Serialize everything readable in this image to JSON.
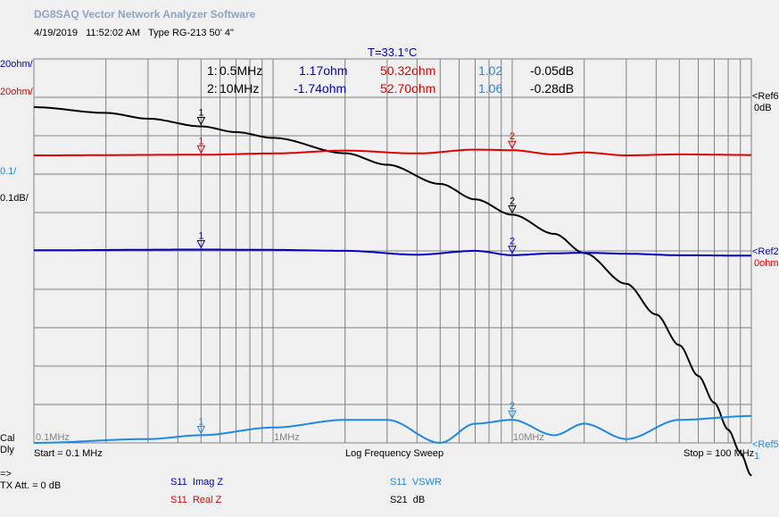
{
  "app_title": "DG8SAQ Vector Network Analyzer Software",
  "date": "4/19/2019",
  "time": "11:52:02 AM",
  "type_label": "Type RG-213 50' 4\"",
  "temperature": "T=33.1°C",
  "colors": {
    "black": "#000000",
    "red": "#e00000",
    "blue": "#0000c0",
    "lightblue": "#1e88e5",
    "grid": "#808080",
    "bg": "#f0f0f0"
  },
  "left_scales": {
    "imagz": "20ohm/",
    "realz": "20ohm/",
    "vswr": "0.1/",
    "db": "0.1dB/",
    "cal": "Cal",
    "dly": "Dly"
  },
  "right_refs": {
    "ref6": "<Ref6",
    "ref6_val": "0dB",
    "ref2": "<Ref2",
    "ref2_val": "0ohm",
    "ref5": "<Ref5",
    "ref5_val": "1"
  },
  "markers": [
    {
      "id": "1:",
      "freq": "0.5MHz",
      "imagz": "1.17ohm",
      "realz": "50.32ohm",
      "vswr": "1.02",
      "db": "-0.05dB"
    },
    {
      "id": "2:",
      "freq": "10MHz",
      "imagz": "-1.74ohm",
      "realz": "52.70ohm",
      "vswr": "1.06",
      "db": "-0.28dB"
    }
  ],
  "freq_labels": {
    "f01": "0.1MHz",
    "f1": "1MHz",
    "f10": "10MHz"
  },
  "start": "Start = 0.1 MHz",
  "sweep": "Log Frequency Sweep",
  "stop": "Stop = 100 MHz",
  "arrow": "=>",
  "tx_att": "TX Att. = 0 dB",
  "legend": [
    {
      "param": "S11",
      "name": "Imag Z"
    },
    {
      "param": "S11",
      "name": "Real Z"
    },
    {
      "param": "S11",
      "name": "VSWR"
    },
    {
      "param": "S21",
      "name": "dB"
    }
  ],
  "chart_data": {
    "type": "line",
    "x_scale": "log",
    "xlim": [
      0.1,
      100
    ],
    "x_unit": "MHz",
    "series": [
      {
        "name": "S21 dB",
        "color": "#000000",
        "x": [
          0.1,
          0.2,
          0.3,
          0.5,
          0.7,
          1,
          2,
          3,
          5,
          7,
          10,
          15,
          20,
          30,
          40,
          50,
          60,
          70,
          80,
          90,
          100
        ],
        "y": [
          0.0,
          -0.015,
          -0.03,
          -0.05,
          -0.065,
          -0.08,
          -0.12,
          -0.15,
          -0.2,
          -0.24,
          -0.28,
          -0.33,
          -0.38,
          -0.46,
          -0.54,
          -0.62,
          -0.7,
          -0.77,
          -0.84,
          -0.9,
          -0.96
        ]
      },
      {
        "name": "S11 Real Z",
        "color": "#e00000",
        "x": [
          0.1,
          0.5,
          1,
          2,
          4,
          7,
          10,
          15,
          20,
          30,
          50,
          100
        ],
        "y": [
          50.0,
          50.32,
          51.0,
          52.5,
          51.0,
          53.0,
          52.7,
          50.5,
          51.5,
          50.0,
          50.5,
          50.2
        ]
      },
      {
        "name": "S11 Imag Z",
        "color": "#0000c0",
        "x": [
          0.1,
          0.5,
          1,
          2,
          4,
          7,
          10,
          15,
          20,
          30,
          50,
          100
        ],
        "y": [
          0.8,
          1.17,
          1.0,
          0.5,
          -1.5,
          0.5,
          -1.74,
          -0.8,
          -0.5,
          -1.0,
          -1.8,
          -2.0
        ]
      },
      {
        "name": "S11 VSWR",
        "color": "#1e88e5",
        "x": [
          0.1,
          0.3,
          0.5,
          1,
          2,
          3,
          5,
          7,
          10,
          15,
          20,
          30,
          50,
          100
        ],
        "y": [
          1.0,
          1.01,
          1.02,
          1.04,
          1.06,
          1.06,
          1.0,
          1.05,
          1.06,
          1.02,
          1.05,
          1.01,
          1.06,
          1.07
        ]
      }
    ]
  }
}
